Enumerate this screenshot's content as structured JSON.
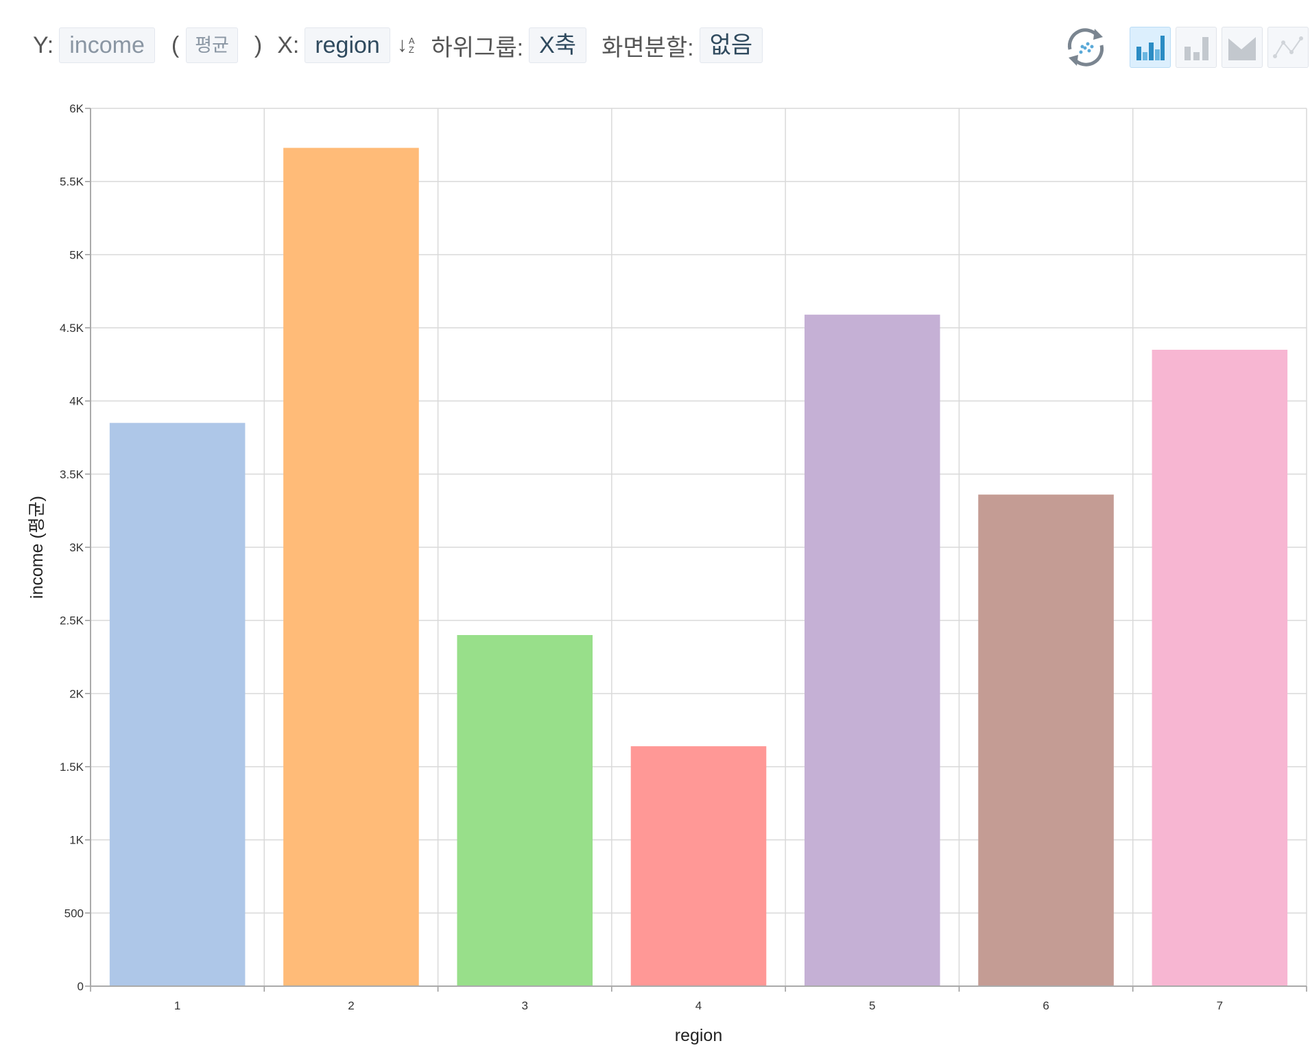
{
  "toolbar": {
    "y_label": "Y:",
    "y_field": "income",
    "aggregate": "평균",
    "paren_open": "(",
    "paren_close": ")",
    "x_label": "X:",
    "x_field": "region",
    "sort_icon": "sort-alpha-icon",
    "sort_top": "A",
    "sort_bottom": "Z",
    "subgroup_label": "하위그룹:",
    "subgroup_value": "X축",
    "split_label": "화면분할:",
    "split_value": "없음",
    "icons": [
      "refresh-scatter-icon",
      "bar-chart-icon",
      "bar-chart-outline-icon",
      "area-chart-icon",
      "line-chart-icon"
    ],
    "active_chart_type": "bar"
  },
  "chart_data": {
    "type": "bar",
    "categories": [
      "1",
      "2",
      "3",
      "4",
      "5",
      "6",
      "7"
    ],
    "values": [
      3850,
      5730,
      2400,
      1640,
      4590,
      3360,
      4350
    ],
    "colors": [
      "#aec7e8",
      "#ffbb78",
      "#98df8a",
      "#ff9896",
      "#c5b0d5",
      "#c49c94",
      "#f7b6d2"
    ],
    "xlabel": "region",
    "ylabel": "income (평균)",
    "ylim": [
      0,
      6000
    ],
    "yticks": [
      0,
      500,
      1000,
      1500,
      2000,
      2500,
      3000,
      3500,
      4000,
      4500,
      5000,
      5500,
      6000
    ],
    "ytick_labels": [
      "0",
      "500",
      "1K",
      "1.5K",
      "2K",
      "2.5K",
      "3K",
      "3.5K",
      "4K",
      "4.5K",
      "5K",
      "5.5K",
      "6K"
    ],
    "grid": true,
    "legend": "none"
  }
}
